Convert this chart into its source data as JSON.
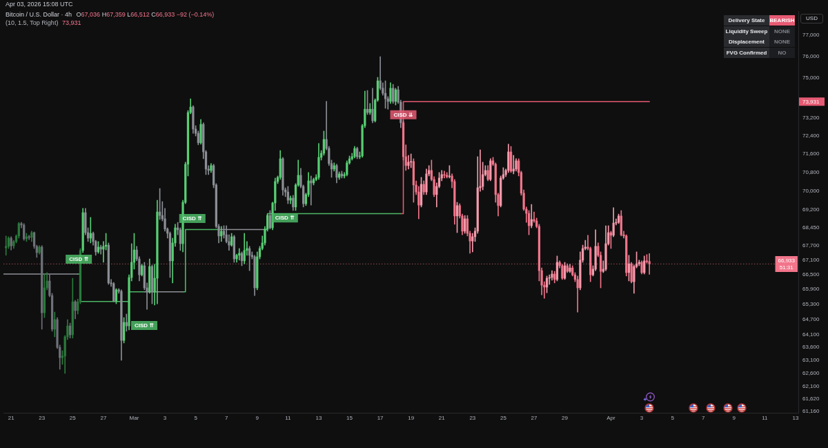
{
  "chart_data": {
    "type": "candlestick",
    "title": "Bitcoin / U.S. Dollar · 4h",
    "subtitle": "O67,036 H67,359 L66,512 C66,933 −92 (−0.14%)",
    "log": true,
    "grid": false,
    "legend": false,
    "marker": "none",
    "xlim": [
      "2026-02-20T12:00",
      "2026-04-13T04:24"
    ],
    "xticks": [
      {
        "value": "2026-02-21",
        "label": "21"
      },
      {
        "value": "2026-02-23",
        "label": "23"
      },
      {
        "value": "2026-02-25",
        "label": "25"
      },
      {
        "value": "2026-02-27",
        "label": "27"
      },
      {
        "value": "2026-03-01",
        "label": "Mar"
      },
      {
        "value": "2026-03-03",
        "label": "3"
      },
      {
        "value": "2026-03-05",
        "label": "5"
      },
      {
        "value": "2026-03-07",
        "label": "7"
      },
      {
        "value": "2026-03-09",
        "label": "9"
      },
      {
        "value": "2026-03-11",
        "label": "11"
      },
      {
        "value": "2026-03-13",
        "label": "13"
      },
      {
        "value": "2026-03-15",
        "label": "15"
      },
      {
        "value": "2026-03-17",
        "label": "17"
      },
      {
        "value": "2026-03-19",
        "label": "19"
      },
      {
        "value": "2026-03-21",
        "label": "21"
      },
      {
        "value": "2026-03-23",
        "label": "23"
      },
      {
        "value": "2026-03-25",
        "label": "25"
      },
      {
        "value": "2026-03-27",
        "label": "27"
      },
      {
        "value": "2026-03-29",
        "label": "29"
      },
      {
        "value": "2026-04-01",
        "label": "Apr"
      },
      {
        "value": "2026-04-03",
        "label": "3"
      },
      {
        "value": "2026-04-05",
        "label": "5"
      },
      {
        "value": "2026-04-07",
        "label": "7"
      },
      {
        "value": "2026-04-09",
        "label": "9"
      },
      {
        "value": "2026-04-11",
        "label": "11"
      },
      {
        "value": "2026-04-13",
        "label": "13"
      }
    ],
    "ylim": [
      61100,
      78150
    ],
    "yticks": [
      {
        "value": 77000,
        "label": "77,000"
      },
      {
        "value": 76000,
        "label": "76,000"
      },
      {
        "value": 75000,
        "label": "75,000"
      },
      {
        "value": 73200,
        "label": "73,200"
      },
      {
        "value": 72400,
        "label": "72,400"
      },
      {
        "value": 71600,
        "label": "71,600"
      },
      {
        "value": 70800,
        "label": "70,800"
      },
      {
        "value": 70000,
        "label": "70,000"
      },
      {
        "value": 69200,
        "label": "69,200"
      },
      {
        "value": 68450,
        "label": "68,450"
      },
      {
        "value": 67700,
        "label": "67,700"
      },
      {
        "value": 67100,
        "label": "67,100"
      },
      {
        "value": 66500,
        "label": "66,500"
      },
      {
        "value": 65900,
        "label": "65,900"
      },
      {
        "value": 65300,
        "label": "65,300"
      },
      {
        "value": 64700,
        "label": "64,700"
      },
      {
        "value": 64100,
        "label": "64,100"
      },
      {
        "value": 63600,
        "label": "63,600"
      },
      {
        "value": 63100,
        "label": "63,100"
      },
      {
        "value": 62600,
        "label": "62,600"
      },
      {
        "value": 62100,
        "label": "62,100"
      },
      {
        "value": 61620,
        "label": "61,620"
      },
      {
        "value": 61160,
        "label": "61,160"
      }
    ],
    "x": [
      "2026-02-20T16:00",
      "2026-02-20T20:00",
      "2026-02-21T00:00",
      "2026-02-21T04:00",
      "2026-02-21T08:00",
      "2026-02-21T12:00",
      "2026-02-21T16:00",
      "2026-02-21T20:00",
      "2026-02-22T00:00",
      "2026-02-22T04:00",
      "2026-02-22T08:00",
      "2026-02-22T12:00",
      "2026-02-22T16:00",
      "2026-02-22T20:00",
      "2026-02-23T00:00",
      "2026-02-23T04:00",
      "2026-02-23T08:00",
      "2026-02-23T12:00",
      "2026-02-23T16:00",
      "2026-02-23T20:00",
      "2026-02-24T00:00",
      "2026-02-24T04:00",
      "2026-02-24T08:00",
      "2026-02-24T12:00",
      "2026-02-24T16:00",
      "2026-02-24T20:00",
      "2026-02-25T00:00",
      "2026-02-25T04:00",
      "2026-02-25T08:00",
      "2026-02-25T12:00",
      "2026-02-25T16:00",
      "2026-02-25T20:00",
      "2026-02-26T00:00",
      "2026-02-26T04:00",
      "2026-02-26T08:00",
      "2026-02-26T12:00",
      "2026-02-26T16:00",
      "2026-02-26T20:00",
      "2026-02-27T00:00",
      "2026-02-27T04:00",
      "2026-02-27T08:00",
      "2026-02-27T12:00",
      "2026-02-27T16:00",
      "2026-02-27T20:00",
      "2026-02-28T00:00",
      "2026-02-28T04:00",
      "2026-02-28T08:00",
      "2026-02-28T12:00",
      "2026-02-28T16:00",
      "2026-02-28T20:00",
      "2026-03-01T00:00",
      "2026-03-01T04:00",
      "2026-03-01T08:00",
      "2026-03-01T12:00",
      "2026-03-01T16:00",
      "2026-03-01T20:00",
      "2026-03-02T00:00",
      "2026-03-02T04:00",
      "2026-03-02T08:00",
      "2026-03-02T12:00",
      "2026-03-02T16:00",
      "2026-03-02T20:00",
      "2026-03-03T00:00",
      "2026-03-03T04:00",
      "2026-03-03T08:00",
      "2026-03-03T12:00",
      "2026-03-03T16:00",
      "2026-03-03T20:00",
      "2026-03-04T00:00",
      "2026-03-04T04:00",
      "2026-03-04T08:00",
      "2026-03-04T12:00",
      "2026-03-04T16:00",
      "2026-03-04T20:00",
      "2026-03-05T00:00",
      "2026-03-05T04:00",
      "2026-03-05T08:00",
      "2026-03-05T12:00",
      "2026-03-05T16:00",
      "2026-03-05T20:00",
      "2026-03-06T00:00",
      "2026-03-06T04:00",
      "2026-03-06T08:00",
      "2026-03-06T12:00",
      "2026-03-06T16:00",
      "2026-03-06T20:00",
      "2026-03-07T00:00",
      "2026-03-07T04:00",
      "2026-03-07T08:00",
      "2026-03-07T12:00",
      "2026-03-07T16:00",
      "2026-03-07T20:00",
      "2026-03-08T00:00",
      "2026-03-08T04:00",
      "2026-03-08T08:00",
      "2026-03-08T12:00",
      "2026-03-08T16:00",
      "2026-03-08T20:00",
      "2026-03-09T00:00",
      "2026-03-09T04:00",
      "2026-03-09T08:00",
      "2026-03-09T12:00",
      "2026-03-09T16:00",
      "2026-03-09T20:00",
      "2026-03-10T00:00",
      "2026-03-10T04:00",
      "2026-03-10T08:00",
      "2026-03-10T12:00",
      "2026-03-10T16:00",
      "2026-03-10T20:00",
      "2026-03-11T00:00",
      "2026-03-11T04:00",
      "2026-03-11T08:00",
      "2026-03-11T12:00",
      "2026-03-11T16:00",
      "2026-03-11T20:00",
      "2026-03-12T00:00",
      "2026-03-12T04:00",
      "2026-03-12T08:00",
      "2026-03-12T12:00",
      "2026-03-12T16:00",
      "2026-03-12T20:00",
      "2026-03-13T00:00",
      "2026-03-13T04:00",
      "2026-03-13T08:00",
      "2026-03-13T12:00",
      "2026-03-13T16:00",
      "2026-03-13T20:00",
      "2026-03-14T00:00",
      "2026-03-14T04:00",
      "2026-03-14T08:00",
      "2026-03-14T12:00",
      "2026-03-14T16:00",
      "2026-03-14T20:00",
      "2026-03-15T00:00",
      "2026-03-15T04:00",
      "2026-03-15T08:00",
      "2026-03-15T12:00",
      "2026-03-15T16:00",
      "2026-03-15T20:00",
      "2026-03-16T00:00",
      "2026-03-16T04:00",
      "2026-03-16T08:00",
      "2026-03-16T12:00",
      "2026-03-16T16:00",
      "2026-03-16T20:00",
      "2026-03-17T00:00",
      "2026-03-17T04:00",
      "2026-03-17T08:00",
      "2026-03-17T12:00",
      "2026-03-17T16:00",
      "2026-03-17T20:00",
      "2026-03-18T00:00",
      "2026-03-18T04:00",
      "2026-03-18T08:00",
      "2026-03-18T12:00",
      "2026-03-18T16:00",
      "2026-03-18T20:00",
      "2026-03-19T00:00",
      "2026-03-19T04:00",
      "2026-03-19T08:00",
      "2026-03-19T12:00",
      "2026-03-19T16:00",
      "2026-03-19T20:00",
      "2026-03-20T00:00",
      "2026-03-20T04:00",
      "2026-03-20T08:00",
      "2026-03-20T12:00",
      "2026-03-20T16:00",
      "2026-03-20T20:00",
      "2026-03-21T00:00",
      "2026-03-21T04:00",
      "2026-03-21T08:00",
      "2026-03-21T12:00",
      "2026-03-21T16:00",
      "2026-03-21T20:00",
      "2026-03-22T00:00",
      "2026-03-22T04:00",
      "2026-03-22T08:00",
      "2026-03-22T12:00",
      "2026-03-22T16:00",
      "2026-03-22T20:00",
      "2026-03-23T00:00",
      "2026-03-23T04:00",
      "2026-03-23T08:00",
      "2026-03-23T12:00",
      "2026-03-23T16:00",
      "2026-03-23T20:00",
      "2026-03-24T00:00",
      "2026-03-24T04:00",
      "2026-03-24T08:00",
      "2026-03-24T12:00",
      "2026-03-24T16:00",
      "2026-03-24T20:00",
      "2026-03-25T00:00",
      "2026-03-25T04:00",
      "2026-03-25T08:00",
      "2026-03-25T12:00",
      "2026-03-25T16:00",
      "2026-03-25T20:00",
      "2026-03-26T00:00",
      "2026-03-26T04:00",
      "2026-03-26T08:00",
      "2026-03-26T12:00",
      "2026-03-26T16:00",
      "2026-03-26T20:00",
      "2026-03-27T00:00",
      "2026-03-27T04:00",
      "2026-03-27T08:00",
      "2026-03-27T12:00",
      "2026-03-27T16:00",
      "2026-03-27T20:00",
      "2026-03-28T00:00",
      "2026-03-28T04:00",
      "2026-03-28T08:00",
      "2026-03-28T12:00",
      "2026-03-28T16:00",
      "2026-03-28T20:00",
      "2026-03-29T00:00",
      "2026-03-29T04:00",
      "2026-03-29T08:00",
      "2026-03-29T12:00",
      "2026-03-29T16:00",
      "2026-03-29T20:00",
      "2026-03-30T00:00",
      "2026-03-30T04:00",
      "2026-03-30T08:00",
      "2026-03-30T12:00",
      "2026-03-30T16:00",
      "2026-03-30T20:00",
      "2026-03-31T00:00",
      "2026-03-31T04:00",
      "2026-03-31T08:00",
      "2026-03-31T12:00",
      "2026-03-31T16:00",
      "2026-03-31T20:00",
      "2026-04-01T00:00",
      "2026-04-01T04:00",
      "2026-04-01T08:00",
      "2026-04-01T12:00",
      "2026-04-01T16:00",
      "2026-04-01T20:00",
      "2026-04-02T00:00",
      "2026-04-02T04:00",
      "2026-04-02T08:00",
      "2026-04-02T12:00",
      "2026-04-02T16:00",
      "2026-04-02T20:00",
      "2026-04-03T00:00",
      "2026-04-03T04:00",
      "2026-04-03T08:00",
      "2026-04-03T12:00"
    ],
    "ohlc": [
      [
        67600,
        68090,
        67290,
        67660
      ],
      [
        67660,
        68060,
        67570,
        68000
      ],
      [
        68000,
        68060,
        67510,
        67680
      ],
      [
        67680,
        67910,
        67570,
        67860
      ],
      [
        67860,
        68140,
        67800,
        68090
      ],
      [
        68090,
        68660,
        68000,
        68610
      ],
      [
        68610,
        68660,
        68430,
        68550
      ],
      [
        68550,
        68610,
        67910,
        67970
      ],
      [
        67970,
        68200,
        67860,
        68060
      ],
      [
        68060,
        68120,
        67940,
        68030
      ],
      [
        68030,
        68290,
        67860,
        68230
      ],
      [
        68230,
        68260,
        67570,
        67660
      ],
      [
        67660,
        67710,
        67200,
        67400
      ],
      [
        67400,
        67690,
        67340,
        67630
      ],
      [
        67630,
        67690,
        64310,
        64960
      ],
      [
        64960,
        66520,
        64770,
        65960
      ],
      [
        65960,
        66580,
        65880,
        66240
      ],
      [
        66240,
        66520,
        65600,
        65650
      ],
      [
        65650,
        65740,
        64230,
        64310
      ],
      [
        64310,
        64990,
        64010,
        64690
      ],
      [
        64690,
        64770,
        63550,
        63600
      ],
      [
        63600,
        63690,
        62750,
        63200
      ],
      [
        63200,
        63470,
        62940,
        63260
      ],
      [
        63260,
        64060,
        62590,
        64010
      ],
      [
        64010,
        64690,
        63900,
        64440
      ],
      [
        64440,
        64550,
        63960,
        64090
      ],
      [
        64090,
        66350,
        63960,
        65400
      ],
      [
        65400,
        65460,
        64720,
        65050
      ],
      [
        65050,
        65510,
        64910,
        65400
      ],
      [
        65400,
        67570,
        65320,
        67490
      ],
      [
        67490,
        69250,
        67400,
        69070
      ],
      [
        69070,
        69250,
        68140,
        68230
      ],
      [
        68230,
        68430,
        67860,
        68000
      ],
      [
        68000,
        68870,
        67800,
        68200
      ],
      [
        68200,
        68260,
        67710,
        67860
      ],
      [
        67860,
        67910,
        67290,
        67430
      ],
      [
        67430,
        67860,
        67370,
        67630
      ],
      [
        67630,
        67710,
        67340,
        67540
      ],
      [
        67540,
        67860,
        67000,
        67660
      ],
      [
        67660,
        68200,
        67510,
        67710
      ],
      [
        67710,
        67800,
        66100,
        66160
      ],
      [
        66160,
        66300,
        66020,
        66130
      ],
      [
        66130,
        66180,
        65400,
        65430
      ],
      [
        65430,
        65930,
        65320,
        65880
      ],
      [
        65880,
        65930,
        65740,
        65820
      ],
      [
        65820,
        65880,
        63100,
        63870
      ],
      [
        63870,
        64770,
        63770,
        64580
      ],
      [
        64580,
        64910,
        64230,
        64440
      ],
      [
        64440,
        66490,
        64280,
        66380
      ],
      [
        66380,
        67770,
        66240,
        67000
      ],
      [
        67000,
        68200,
        66720,
        67510
      ],
      [
        67510,
        67660,
        67060,
        67140
      ],
      [
        67140,
        67230,
        66240,
        66490
      ],
      [
        66490,
        66920,
        66440,
        66860
      ],
      [
        66860,
        67000,
        65880,
        65960
      ],
      [
        65960,
        66160,
        65100,
        65790
      ],
      [
        65790,
        67140,
        65740,
        66830
      ],
      [
        66830,
        66890,
        65320,
        65790
      ],
      [
        65790,
        66920,
        65270,
        66350
      ],
      [
        66350,
        69600,
        65320,
        69100
      ],
      [
        69100,
        70100,
        68780,
        68950
      ],
      [
        68950,
        69540,
        68720,
        68810
      ],
      [
        68810,
        69250,
        68290,
        68380
      ],
      [
        68380,
        68430,
        68000,
        68200
      ],
      [
        68200,
        68260,
        66380,
        67060
      ],
      [
        67060,
        68000,
        66160,
        67800
      ],
      [
        67800,
        68580,
        67660,
        68430
      ],
      [
        68430,
        68660,
        68140,
        68350
      ],
      [
        68350,
        68430,
        67490,
        67770
      ],
      [
        67770,
        69600,
        67430,
        69510
      ],
      [
        69510,
        71240,
        69450,
        71150
      ],
      [
        71150,
        73530,
        70640,
        73440
      ],
      [
        73440,
        74060,
        73380,
        73690
      ],
      [
        73690,
        73750,
        72510,
        72700
      ],
      [
        72700,
        72850,
        72390,
        72510
      ],
      [
        72510,
        72610,
        72000,
        72090
      ],
      [
        72090,
        73130,
        72030,
        72910
      ],
      [
        72910,
        72980,
        71390,
        71690
      ],
      [
        71690,
        71750,
        70700,
        70940
      ],
      [
        70940,
        71090,
        70700,
        70880
      ],
      [
        70880,
        71180,
        70790,
        71090
      ],
      [
        71090,
        71150,
        70130,
        70250
      ],
      [
        70250,
        70310,
        68430,
        68490
      ],
      [
        68490,
        68580,
        67800,
        68090
      ],
      [
        68090,
        68490,
        67860,
        68290
      ],
      [
        68290,
        68520,
        68000,
        68140
      ],
      [
        68140,
        68520,
        67800,
        67860
      ],
      [
        67860,
        68140,
        67490,
        67710
      ],
      [
        67710,
        68200,
        67660,
        68060
      ],
      [
        68060,
        68120,
        67000,
        67140
      ],
      [
        67140,
        67340,
        67000,
        67290
      ],
      [
        67290,
        67570,
        67090,
        67370
      ],
      [
        67370,
        67430,
        66860,
        67060
      ],
      [
        67060,
        68200,
        66940,
        67490
      ],
      [
        67490,
        67860,
        67290,
        67570
      ],
      [
        67570,
        67660,
        66660,
        67290
      ],
      [
        67290,
        67430,
        67140,
        67230
      ],
      [
        67230,
        67290,
        65650,
        65960
      ],
      [
        65960,
        67430,
        65880,
        67230
      ],
      [
        67230,
        67660,
        67140,
        67570
      ],
      [
        67570,
        68090,
        67510,
        67800
      ],
      [
        67800,
        68490,
        67710,
        68380
      ],
      [
        68380,
        69010,
        68290,
        68950
      ],
      [
        68950,
        69160,
        68380,
        68430
      ],
      [
        68430,
        69520,
        68350,
        69480
      ],
      [
        69480,
        70550,
        69160,
        70400
      ],
      [
        70400,
        70640,
        70310,
        70580
      ],
      [
        70580,
        71750,
        70490,
        71390
      ],
      [
        71390,
        71450,
        69810,
        70040
      ],
      [
        70040,
        70130,
        69750,
        69950
      ],
      [
        69950,
        70190,
        69450,
        69600
      ],
      [
        69600,
        69780,
        69450,
        69690
      ],
      [
        69690,
        69810,
        69160,
        69310
      ],
      [
        69310,
        70310,
        69160,
        70250
      ],
      [
        70250,
        71330,
        70190,
        70670
      ],
      [
        70670,
        70970,
        70130,
        70190
      ],
      [
        70190,
        70250,
        69310,
        69450
      ],
      [
        69450,
        69900,
        69370,
        69840
      ],
      [
        69840,
        70790,
        69750,
        70430
      ],
      [
        70430,
        70640,
        69390,
        70340
      ],
      [
        70340,
        70550,
        70250,
        70490
      ],
      [
        70490,
        70700,
        70430,
        70580
      ],
      [
        70580,
        72060,
        70490,
        71450
      ],
      [
        71450,
        71750,
        71330,
        71630
      ],
      [
        71630,
        72610,
        71540,
        72240
      ],
      [
        72240,
        73940,
        71780,
        71840
      ],
      [
        71840,
        71930,
        71090,
        71180
      ],
      [
        71180,
        71330,
        70580,
        70940
      ],
      [
        70940,
        71210,
        70850,
        71090
      ],
      [
        71090,
        71150,
        70340,
        70580
      ],
      [
        70580,
        70820,
        70490,
        70730
      ],
      [
        70730,
        70850,
        70550,
        70640
      ],
      [
        70640,
        70790,
        70550,
        70700
      ],
      [
        70700,
        71300,
        70640,
        71210
      ],
      [
        71210,
        71510,
        71150,
        71390
      ],
      [
        71390,
        71630,
        71330,
        71480
      ],
      [
        71480,
        71930,
        71420,
        71840
      ],
      [
        71840,
        71900,
        71390,
        71480
      ],
      [
        71480,
        71690,
        71390,
        71510
      ],
      [
        71510,
        72910,
        71450,
        72850
      ],
      [
        72850,
        74410,
        72760,
        73590
      ],
      [
        73590,
        74440,
        73350,
        73440
      ],
      [
        73440,
        73850,
        73350,
        73590
      ],
      [
        73590,
        74540,
        72980,
        73070
      ],
      [
        73070,
        74060,
        73010,
        74000
      ],
      [
        74000,
        75040,
        73940,
        74880
      ],
      [
        74880,
        76000,
        74470,
        74540
      ],
      [
        74540,
        74790,
        74220,
        74310
      ],
      [
        74310,
        74880,
        73630,
        74060
      ],
      [
        74060,
        74160,
        73590,
        73940
      ],
      [
        73940,
        74790,
        73850,
        74540
      ],
      [
        74540,
        74720,
        73850,
        73940
      ],
      [
        73940,
        74540,
        73780,
        74470
      ],
      [
        74470,
        74630,
        73850,
        73910
      ],
      [
        73910,
        74000,
        72760,
        72980
      ],
      [
        72980,
        73070,
        71330,
        71480
      ],
      [
        71480,
        72000,
        70880,
        71090
      ],
      [
        71090,
        71540,
        70940,
        71240
      ],
      [
        71240,
        71600,
        71000,
        71270
      ],
      [
        71270,
        71390,
        69510,
        70250
      ],
      [
        70250,
        70430,
        69840,
        69950
      ],
      [
        69950,
        70190,
        68810,
        69390
      ],
      [
        69390,
        70580,
        69310,
        70280
      ],
      [
        70280,
        70430,
        69840,
        69950
      ],
      [
        69950,
        70940,
        69840,
        70730
      ],
      [
        70730,
        71090,
        70640,
        70880
      ],
      [
        70880,
        71330,
        70430,
        70490
      ],
      [
        70490,
        70610,
        69750,
        69840
      ],
      [
        69840,
        70340,
        69310,
        70190
      ],
      [
        70190,
        70790,
        70130,
        70550
      ],
      [
        70550,
        70880,
        70430,
        70700
      ],
      [
        70700,
        70850,
        70550,
        70670
      ],
      [
        70670,
        70790,
        70550,
        70610
      ],
      [
        70610,
        71090,
        70550,
        70640
      ],
      [
        70640,
        70730,
        70130,
        70400
      ],
      [
        70400,
        70490,
        68580,
        68930
      ],
      [
        68930,
        69510,
        68230,
        69370
      ],
      [
        69370,
        69450,
        68840,
        68930
      ],
      [
        68930,
        69010,
        68140,
        68290
      ],
      [
        68290,
        68950,
        68200,
        68810
      ],
      [
        68810,
        68950,
        68090,
        68200
      ],
      [
        68200,
        68290,
        67370,
        67880
      ],
      [
        67880,
        68200,
        67430,
        68060
      ],
      [
        68060,
        68430,
        67860,
        68290
      ],
      [
        68290,
        71480,
        68200,
        70130
      ],
      [
        70130,
        71780,
        69980,
        70190
      ],
      [
        70190,
        71240,
        70040,
        70700
      ],
      [
        70700,
        71090,
        70640,
        70880
      ],
      [
        70880,
        71090,
        70430,
        70490
      ],
      [
        70490,
        71390,
        70430,
        71300
      ],
      [
        71300,
        71450,
        71090,
        71150
      ],
      [
        71150,
        71210,
        69510,
        69840
      ],
      [
        69840,
        69900,
        68930,
        69370
      ],
      [
        69370,
        70640,
        69310,
        70550
      ],
      [
        70550,
        71000,
        70490,
        70700
      ],
      [
        70700,
        70940,
        70610,
        70880
      ],
      [
        70880,
        72030,
        70790,
        71690
      ],
      [
        71690,
        71930,
        70790,
        70850
      ],
      [
        70850,
        71540,
        70730,
        70940
      ],
      [
        70940,
        71390,
        70850,
        71300
      ],
      [
        71300,
        71390,
        70640,
        70790
      ],
      [
        70790,
        70850,
        69810,
        69900
      ],
      [
        69900,
        70040,
        69160,
        69220
      ],
      [
        69220,
        69310,
        68660,
        69040
      ],
      [
        69040,
        69160,
        68140,
        68520
      ],
      [
        68520,
        69420,
        68430,
        68780
      ],
      [
        68780,
        69100,
        68660,
        68720
      ],
      [
        68720,
        68840,
        68430,
        68490
      ],
      [
        68490,
        68580,
        66240,
        66660
      ],
      [
        66660,
        66770,
        65680,
        66070
      ],
      [
        66070,
        66210,
        65540,
        65990
      ],
      [
        65990,
        66440,
        65760,
        66350
      ],
      [
        66350,
        66490,
        66100,
        66380
      ],
      [
        66380,
        66660,
        66270,
        66520
      ],
      [
        66520,
        66630,
        66160,
        66300
      ],
      [
        66300,
        67260,
        66240,
        67000
      ],
      [
        67000,
        67060,
        66770,
        66860
      ],
      [
        66860,
        66920,
        66300,
        66350
      ],
      [
        66350,
        67000,
        66300,
        66860
      ],
      [
        66860,
        66940,
        66580,
        66630
      ],
      [
        66630,
        66920,
        66580,
        66770
      ],
      [
        66770,
        66860,
        66440,
        66490
      ],
      [
        66490,
        66580,
        66210,
        66300
      ],
      [
        66300,
        66440,
        64990,
        65960
      ],
      [
        65960,
        67430,
        65880,
        67090
      ],
      [
        67090,
        67710,
        67000,
        67570
      ],
      [
        67570,
        67910,
        67510,
        67630
      ],
      [
        67630,
        68120,
        67510,
        67570
      ],
      [
        67570,
        67630,
        66210,
        66490
      ],
      [
        66490,
        66860,
        66440,
        66720
      ],
      [
        66720,
        68350,
        66660,
        67660
      ],
      [
        67660,
        67800,
        67230,
        67290
      ],
      [
        67290,
        67430,
        65960,
        66630
      ],
      [
        66630,
        67060,
        66580,
        66720
      ],
      [
        66720,
        68520,
        66660,
        67770
      ],
      [
        67770,
        68520,
        67710,
        68230
      ],
      [
        68230,
        68290,
        67570,
        68120
      ],
      [
        68120,
        69280,
        68060,
        68630
      ],
      [
        68630,
        68810,
        68550,
        68660
      ],
      [
        68660,
        69010,
        68610,
        68930
      ],
      [
        68930,
        69160,
        68090,
        68140
      ],
      [
        68140,
        68290,
        68000,
        68090
      ],
      [
        68090,
        68140,
        66440,
        66580
      ],
      [
        66580,
        67290,
        66240,
        66940
      ],
      [
        66940,
        67000,
        66160,
        66210
      ],
      [
        66210,
        66890,
        65740,
        66830
      ],
      [
        66830,
        67430,
        66770,
        66940
      ],
      [
        66940,
        67090,
        66860,
        67000
      ],
      [
        67000,
        67060,
        66520,
        66580
      ],
      [
        66580,
        67260,
        66520,
        67060
      ],
      [
        67060,
        67320,
        66970,
        67025
      ],
      [
        67036,
        67359,
        66512,
        66933
      ]
    ],
    "colors": [
      "#2a7a3b",
      "#2a7a3b",
      "#6e7179",
      "#2a7a3b",
      "#2a7a3b",
      "#2a7a3b",
      "#6e7179",
      "#6e7179",
      "#2a7a3b",
      "#6e7179",
      "#2a7a3b",
      "#6e7179",
      "#6e7179",
      "#2a7a3b",
      "#6e7179",
      "#2a7a3b",
      "#2a7a3b",
      "#6e7179",
      "#6e7179",
      "#2a7a3b",
      "#6e7179",
      "#6e7179",
      "#2a7a3b",
      "#2a7a3b",
      "#2a7a3b",
      "#6e7179",
      "#2a7a3b",
      "#6e7179",
      "#2a7a3b",
      "#2a7a3b",
      "#57cf73",
      "#8b8e95",
      "#8b8e95",
      "#57cf73",
      "#8b8e95",
      "#8b8e95",
      "#57cf73",
      "#8b8e95",
      "#57cf73",
      "#57cf73",
      "#8b8e95",
      "#8b8e95",
      "#8b8e95",
      "#57cf73",
      "#8b8e95",
      "#8b8e95",
      "#57cf73",
      "#8b8e95",
      "#57cf73",
      "#57cf73",
      "#57cf73",
      "#8b8e95",
      "#8b8e95",
      "#57cf73",
      "#8b8e95",
      "#8b8e95",
      "#57cf73",
      "#8b8e95",
      "#57cf73",
      "#57cf73",
      "#8b8e95",
      "#8b8e95",
      "#8b8e95",
      "#8b8e95",
      "#8b8e95",
      "#57cf73",
      "#57cf73",
      "#8b8e95",
      "#8b8e95",
      "#57cf73",
      "#57cf73",
      "#57cf73",
      "#57cf73",
      "#8b8e95",
      "#8b8e95",
      "#8b8e95",
      "#57cf73",
      "#8b8e95",
      "#8b8e95",
      "#8b8e95",
      "#57cf73",
      "#8b8e95",
      "#8b8e95",
      "#8b8e95",
      "#57cf73",
      "#8b8e95",
      "#8b8e95",
      "#8b8e95",
      "#57cf73",
      "#8b8e95",
      "#57cf73",
      "#57cf73",
      "#8b8e95",
      "#57cf73",
      "#57cf73",
      "#8b8e95",
      "#8b8e95",
      "#8b8e95",
      "#57cf73",
      "#57cf73",
      "#57cf73",
      "#57cf73",
      "#57cf73",
      "#8b8e95",
      "#57cf73",
      "#57cf73",
      "#57cf73",
      "#57cf73",
      "#8b8e95",
      "#8b8e95",
      "#8b8e95",
      "#57cf73",
      "#8b8e95",
      "#57cf73",
      "#57cf73",
      "#8b8e95",
      "#8b8e95",
      "#57cf73",
      "#57cf73",
      "#8b8e95",
      "#57cf73",
      "#57cf73",
      "#57cf73",
      "#57cf73",
      "#57cf73",
      "#8b8e95",
      "#8b8e95",
      "#8b8e95",
      "#57cf73",
      "#8b8e95",
      "#57cf73",
      "#8b8e95",
      "#57cf73",
      "#57cf73",
      "#57cf73",
      "#57cf73",
      "#57cf73",
      "#8b8e95",
      "#57cf73",
      "#57cf73",
      "#57cf73",
      "#8b8e95",
      "#57cf73",
      "#8b8e95",
      "#57cf73",
      "#57cf73",
      "#8b8e95",
      "#8b8e95",
      "#8b8e95",
      "#8b8e95",
      "#57cf73",
      "#8b8e95",
      "#57cf73",
      "#8b8e95",
      "#8b8e95",
      "#f2748a",
      "#f2748a",
      "#f59aab",
      "#f59aab",
      "#f2748a",
      "#f2748a",
      "#f2748a",
      "#f59aab",
      "#f2748a",
      "#f59aab",
      "#f59aab",
      "#f2748a",
      "#f2748a",
      "#f59aab",
      "#f59aab",
      "#f59aab",
      "#f2748a",
      "#f2748a",
      "#f59aab",
      "#f2748a",
      "#f2748a",
      "#f59aab",
      "#f2748a",
      "#f2748a",
      "#f59aab",
      "#f2748a",
      "#f2748a",
      "#f59aab",
      "#f59aab",
      "#f59aab",
      "#f59aab",
      "#f59aab",
      "#f59aab",
      "#f2748a",
      "#f59aab",
      "#f2748a",
      "#f2748a",
      "#f2748a",
      "#f59aab",
      "#f59aab",
      "#f59aab",
      "#f59aab",
      "#f2748a",
      "#f59aab",
      "#f59aab",
      "#f2748a",
      "#f2748a",
      "#f2748a",
      "#f2748a",
      "#f2748a",
      "#f59aab",
      "#f2748a",
      "#f2748a",
      "#f2748a",
      "#f2748a",
      "#f2748a",
      "#f59aab",
      "#f59aab",
      "#f59aab",
      "#f2748a",
      "#f59aab",
      "#f2748a",
      "#f2748a",
      "#f59aab",
      "#f2748a",
      "#f59aab",
      "#f2748a",
      "#f2748a",
      "#f2748a",
      "#f59aab",
      "#f59aab",
      "#f59aab",
      "#f2748a",
      "#f2748a",
      "#f59aab",
      "#f59aab",
      "#f2748a",
      "#f2748a",
      "#f59aab",
      "#f59aab",
      "#f59aab",
      "#f2748a",
      "#f59aab",
      "#f59aab",
      "#f59aab",
      "#f2748a",
      "#f2748a",
      "#f2748a",
      "#f59aab",
      "#f2748a",
      "#f59aab",
      "#f59aab",
      "#f59aab",
      "#f2748a",
      "#f59aab",
      "#f2748a",
      "#f2748a"
    ],
    "series": [
      {
        "type": "step",
        "color": "#8e9198",
        "x": [
          "2026-02-20T12:00",
          "2026-02-25T08:00",
          "2026-02-27T00:00",
          "2026-03-01T16:00",
          "2026-03-04T04:00",
          "2026-03-05T00:00",
          "2026-03-06T12:00",
          "2026-03-09T12:00"
        ],
        "values": [
          66520,
          66520,
          null,
          65800,
          65800,
          null,
          68360,
          68360
        ]
      },
      {
        "type": "step",
        "color": "#4cb866",
        "x": [
          "2026-02-25T08:00",
          "2026-02-25T12:00",
          "2026-02-28T16:00",
          "2026-03-01T16:00",
          "2026-03-02T12:00",
          "2026-03-04T04:00",
          "2026-03-04T08:00",
          "2026-03-06T12:00",
          "2026-03-07T12:00",
          "2026-03-09T12:00",
          "2026-03-09T16:00",
          "2026-03-18T08:00"
        ],
        "values": [
          66520,
          65410,
          65800,
          65800,
          null,
          65800,
          68360,
          68360,
          null,
          68360,
          69030,
          69030
        ]
      },
      {
        "type": "step",
        "color": "#e65a73",
        "x": [
          "2026-03-18T08:00",
          "2026-03-18T12:00",
          "2026-04-03T12:00"
        ],
        "values": [
          69030,
          73931,
          73931
        ]
      }
    ],
    "ref_lines": [
      {
        "axis": "y",
        "value": 66933,
        "label": "66,933",
        "color": "#f2748a",
        "line_style": "dotted"
      }
    ],
    "annotations": [
      "Apr 03, 2026 15:08 UTC",
      "(10, 1.5, Top Right)",
      "73,931",
      "Delivery State",
      "BEARISH",
      "Liquidity Sweep",
      "NONE",
      "Displacement",
      "NONE",
      "FVG Confirmed",
      "NO",
      "USD",
      "51:31",
      {
        "text": "73,931",
        "y": 73931
      },
      {
        "text": "CISD ⇈",
        "x": "2026-02-25T16:00",
        "y": 67400
      },
      {
        "text": "CISD ⇈",
        "x": "2026-02-28T16:00",
        "y": 64720
      },
      {
        "text": "CISD ⇈",
        "x": "2026-03-04T08:00",
        "y": 69100
      },
      {
        "text": "CISD ⇈",
        "x": "2026-03-10T04:00",
        "y": 69390
      },
      {
        "text": "CISD ⇊",
        "x": "2026-03-18T12:00",
        "y": 72980
      }
    ]
  }
}
